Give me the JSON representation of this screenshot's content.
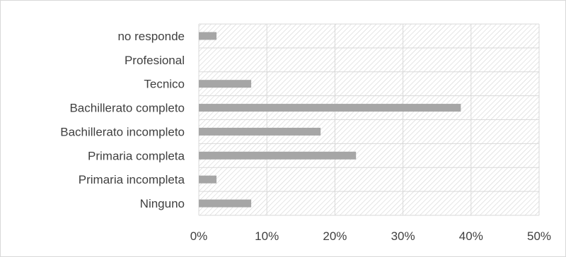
{
  "chart_data": {
    "type": "bar",
    "orientation": "horizontal",
    "categories": [
      "no responde",
      "Profesional",
      "Tecnico",
      "Bachillerato completo",
      "Bachillerato incompleto",
      "Primaria completa",
      "Primaria incompleta",
      "Ninguno"
    ],
    "values": [
      2.6,
      0,
      7.7,
      38.5,
      17.9,
      23.1,
      2.6,
      7.7
    ],
    "x_ticks": [
      "0%",
      "10%",
      "20%",
      "30%",
      "40%",
      "50%"
    ],
    "xlim": [
      0,
      50
    ],
    "title": "",
    "xlabel": "",
    "ylabel": "",
    "grid": true,
    "legend": "none",
    "colors": {
      "bar": "#a6a6a6",
      "gridline": "#d9d9d9",
      "hatch": "#d4d4d4",
      "text": "#404040"
    }
  }
}
